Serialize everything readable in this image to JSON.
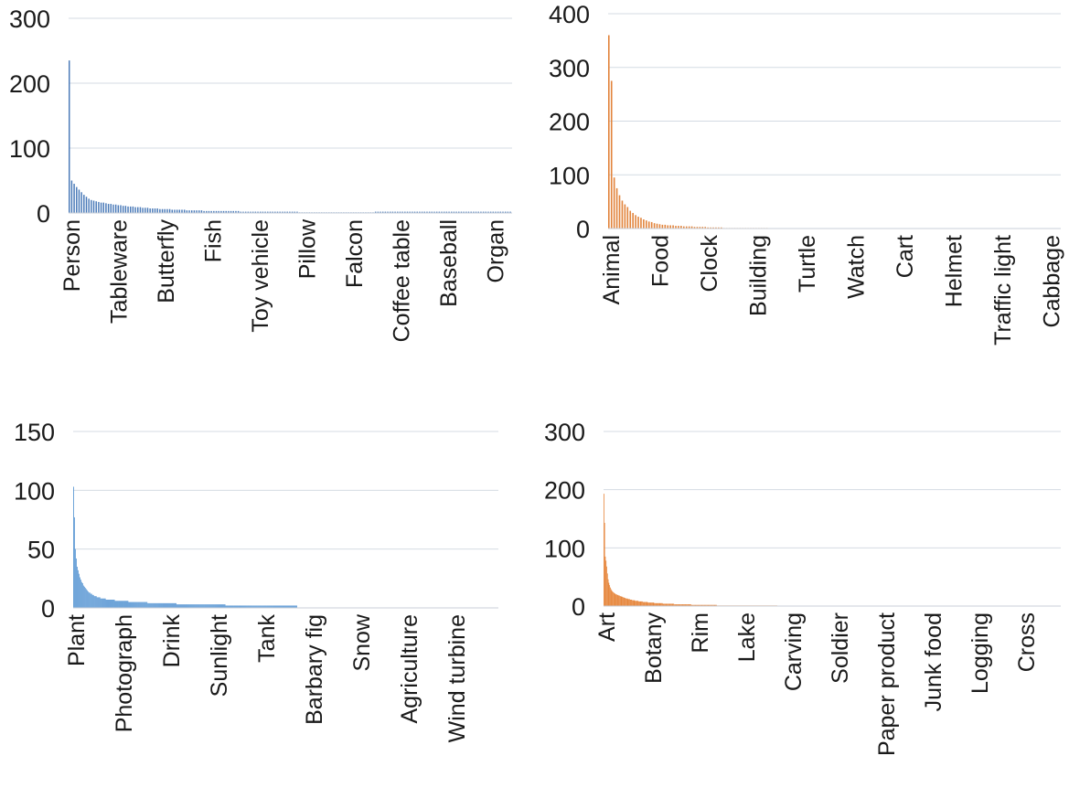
{
  "chart_data": [
    {
      "type": "bar",
      "color": "#4a7ab8",
      "ylim": [
        0,
        300
      ],
      "yticks": [
        0,
        100,
        200,
        300
      ],
      "grid": true,
      "category_labels": [
        "Person",
        "Tableware",
        "Butterfly",
        "Fish",
        "Toy vehicle",
        "Pillow",
        "Falcon",
        "Coffee table",
        "Baseball",
        "Organ"
      ],
      "values": [
        235,
        50,
        45,
        40,
        36,
        32,
        28,
        25,
        22,
        20,
        19,
        18,
        17,
        16,
        16,
        15,
        14,
        14,
        13,
        13,
        12,
        12,
        11,
        11,
        10,
        10,
        10,
        9,
        9,
        9,
        8,
        8,
        8,
        7,
        7,
        7,
        7,
        6,
        6,
        6,
        6,
        6,
        5,
        5,
        5,
        5,
        5,
        5,
        4,
        4,
        4,
        4,
        4,
        4,
        4,
        3,
        3,
        3,
        3,
        3,
        3,
        3,
        3,
        3,
        3,
        3,
        3,
        3,
        3,
        3,
        2,
        2,
        2,
        2,
        2,
        2,
        2,
        2,
        2,
        2,
        2,
        2,
        2,
        2,
        2,
        2,
        2,
        2,
        2,
        2,
        2,
        2,
        2,
        2,
        1,
        1,
        1,
        1,
        1,
        1,
        1,
        1,
        1,
        1,
        1,
        1,
        1,
        1,
        1,
        1,
        1,
        1,
        1,
        1,
        1,
        1,
        1,
        1,
        1,
        1,
        1,
        1,
        1,
        1,
        1,
        2,
        2,
        2,
        2,
        2,
        2,
        2,
        2,
        2,
        2,
        2,
        2,
        2,
        2,
        2,
        2,
        2,
        2,
        2,
        2,
        2,
        2,
        2,
        2,
        2,
        2,
        2,
        2,
        2,
        2,
        2,
        2,
        2,
        2,
        2,
        2,
        2,
        2,
        2,
        2,
        2,
        2,
        2,
        2,
        2,
        2,
        2,
        2,
        2,
        2,
        2,
        2,
        2,
        2,
        2,
        2
      ]
    },
    {
      "type": "bar",
      "color": "#e2843c",
      "ylim": [
        0,
        400
      ],
      "yticks": [
        0,
        100,
        200,
        300,
        400
      ],
      "grid": true,
      "category_labels": [
        "Animal",
        "Food",
        "Clock",
        "Building",
        "Turtle",
        "Watch",
        "Cart",
        "Helmet",
        "Traffic light",
        "Cabbage"
      ],
      "values": [
        360,
        275,
        95,
        75,
        62,
        52,
        45,
        40,
        33,
        29,
        25,
        22,
        20,
        17,
        15,
        13,
        12,
        10,
        9,
        8,
        7,
        7,
        6,
        6,
        6,
        5,
        5,
        5,
        4,
        4,
        4,
        4,
        3,
        3,
        3,
        3,
        3,
        2,
        2,
        2,
        2,
        2,
        2,
        1,
        1,
        1,
        1,
        1,
        1,
        1,
        1,
        1,
        1,
        1,
        1,
        1,
        1,
        1,
        1,
        1,
        0.5,
        0.5,
        0.5,
        0.5,
        0.5,
        0.5,
        0.5,
        0.5,
        0.5,
        0.5
      ]
    },
    {
      "type": "bar",
      "color": "#4d8fd0",
      "ylim": [
        0,
        150
      ],
      "yticks": [
        0,
        50,
        100,
        150
      ],
      "grid": true,
      "category_labels": [
        "Plant",
        "Photograph",
        "Drink",
        "Sunlight",
        "Tank",
        "Barbary fig",
        "Snow",
        "Agriculture",
        "Wind turbine"
      ],
      "values": [
        103,
        77,
        50,
        42,
        35,
        32,
        29,
        26,
        24,
        22,
        21,
        19,
        18,
        17,
        16,
        15,
        14,
        13,
        13,
        12,
        12,
        11,
        11,
        10,
        10,
        10,
        9,
        9,
        9,
        9,
        8,
        8,
        8,
        8,
        8,
        8,
        7,
        7,
        7,
        7,
        7,
        7,
        7,
        7,
        7,
        7,
        6,
        6,
        6,
        6,
        6,
        6,
        6,
        6,
        6,
        6,
        6,
        6,
        6,
        6,
        6,
        5,
        5,
        5,
        5,
        5,
        5,
        5,
        5,
        5,
        5,
        5,
        5,
        5,
        5,
        5,
        5,
        5,
        5,
        5,
        5,
        5,
        4,
        4,
        4,
        4,
        4,
        4,
        4,
        4,
        4,
        4,
        4,
        4,
        4,
        4,
        4,
        4,
        4,
        4,
        4,
        4,
        4,
        4,
        4,
        4,
        4,
        4,
        4,
        4,
        4,
        4,
        4,
        4,
        3,
        3,
        3,
        3,
        3,
        3,
        3,
        3,
        3,
        3,
        3,
        3,
        3,
        3,
        3,
        3,
        3,
        3,
        3,
        3,
        3,
        3,
        3,
        3,
        3,
        3,
        3,
        3,
        3,
        3,
        3,
        3,
        3,
        3,
        3,
        3,
        3,
        3,
        3,
        3,
        3,
        3,
        3,
        3,
        3,
        3,
        3,
        3,
        3,
        3,
        3,
        3,
        3,
        3,
        2,
        2,
        2,
        2,
        2,
        2,
        2,
        2,
        2,
        2,
        2,
        2,
        2,
        2,
        2,
        2,
        2,
        2,
        2,
        2,
        2,
        2,
        2,
        2,
        2,
        2,
        2,
        2,
        2,
        2,
        2,
        2,
        2,
        2,
        2,
        2,
        2,
        2,
        2,
        2,
        2,
        2,
        2,
        2,
        2,
        2,
        2,
        2,
        2,
        2,
        2,
        2,
        2,
        2,
        2,
        2,
        2,
        2,
        2,
        2,
        2,
        2,
        2,
        2,
        2,
        2,
        2,
        2,
        2,
        2,
        2,
        2,
        2,
        2,
        2,
        2,
        2,
        2,
        2
      ]
    },
    {
      "type": "bar",
      "color": "#e6863c",
      "ylim": [
        0,
        300
      ],
      "yticks": [
        0,
        100,
        200,
        300
      ],
      "grid": true,
      "category_labels": [
        "Art",
        "Botany",
        "Rim",
        "Lake",
        "Carving",
        "Soldier",
        "Paper product",
        "Junk food",
        "Logging",
        "Cross"
      ],
      "values": [
        193,
        143,
        85,
        78,
        68,
        56,
        46,
        40,
        36,
        32,
        29,
        27,
        25,
        24,
        23,
        22,
        21,
        20,
        20,
        19,
        19,
        18,
        18,
        17,
        17,
        16,
        16,
        15,
        15,
        14,
        14,
        13,
        13,
        13,
        12,
        12,
        12,
        11,
        11,
        11,
        10,
        10,
        10,
        10,
        9,
        9,
        9,
        9,
        9,
        8,
        8,
        8,
        8,
        8,
        8,
        7,
        7,
        7,
        7,
        7,
        7,
        7,
        6,
        6,
        6,
        6,
        6,
        6,
        6,
        6,
        6,
        5,
        5,
        5,
        5,
        5,
        5,
        5,
        5,
        5,
        5,
        5,
        5,
        4,
        4,
        4,
        4,
        4,
        4,
        4,
        4,
        4,
        4,
        4,
        4,
        4,
        4,
        4,
        4,
        3,
        3,
        3,
        3,
        3,
        3,
        3,
        3,
        3,
        3,
        3,
        3,
        3,
        3,
        3,
        3,
        3,
        3,
        3,
        3,
        3,
        3,
        3,
        3,
        2,
        2,
        2,
        2,
        2,
        2,
        2,
        2,
        2,
        2,
        2,
        2,
        2,
        2,
        2,
        2,
        2,
        2,
        2,
        2,
        2,
        2,
        2,
        2,
        2,
        2,
        2,
        2,
        2,
        2,
        2,
        2,
        2,
        2,
        2,
        2,
        1,
        1,
        1,
        1,
        1,
        1,
        1,
        1,
        1,
        1,
        1,
        1,
        1,
        1,
        1,
        1,
        1,
        1,
        1,
        1,
        1,
        1,
        1,
        1,
        1,
        1,
        1,
        1,
        1,
        1,
        1,
        1,
        1,
        1,
        1,
        1,
        1,
        1,
        1,
        1,
        1,
        1,
        1,
        1,
        1,
        1,
        1,
        1,
        1,
        1,
        1,
        1,
        1,
        1,
        1,
        1,
        1,
        1,
        1,
        1,
        1,
        1,
        1,
        1,
        1,
        1,
        1,
        1,
        1,
        1,
        1,
        1,
        1,
        1,
        1,
        1,
        1,
        1,
        1,
        1,
        1,
        1,
        1,
        1,
        1
      ]
    }
  ]
}
